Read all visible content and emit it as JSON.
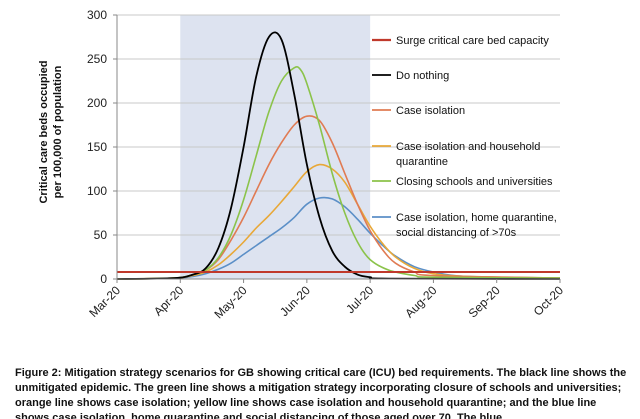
{
  "chart_data": {
    "type": "line",
    "title": "",
    "ylabel_lines": [
      "Critical care beds occupied",
      "per 100,000 of population"
    ],
    "xlabel": "",
    "ylim": [
      0,
      300
    ],
    "yticks": [
      0,
      50,
      100,
      150,
      200,
      250,
      300
    ],
    "xtick_labels": [
      "Mar-20",
      "Apr-20",
      "May-20",
      "Jun-20",
      "Jul-20",
      "Aug-20",
      "Sep-20",
      "Oct-20"
    ],
    "x_domain_months": [
      0,
      7
    ],
    "shaded_period_months": [
      1,
      4
    ],
    "surge_capacity": 8,
    "series": [
      {
        "name": "Surge critical care bed capacity",
        "color": "#c0392b",
        "kind": "hline",
        "value": 8
      },
      {
        "name": "Do nothing",
        "color": "#000000",
        "x": [
          0,
          0.9,
          1.2,
          1.4,
          1.6,
          1.8,
          2.0,
          2.2,
          2.4,
          2.6,
          2.8,
          3.0,
          3.2,
          3.4,
          3.6,
          3.8,
          4.0,
          4.3,
          7
        ],
        "y": [
          0,
          1,
          5,
          12,
          35,
          80,
          150,
          230,
          275,
          272,
          210,
          130,
          70,
          32,
          14,
          5,
          2,
          0.5,
          0
        ]
      },
      {
        "name": "Case isolation",
        "color": "#e07b53",
        "x": [
          0,
          0.9,
          1.2,
          1.4,
          1.6,
          1.8,
          2.0,
          2.2,
          2.4,
          2.6,
          2.8,
          3.0,
          3.2,
          3.4,
          3.6,
          3.8,
          4.0,
          4.2,
          4.4,
          4.7,
          5.0,
          7
        ],
        "y": [
          0,
          1,
          5,
          10,
          22,
          44,
          70,
          100,
          130,
          155,
          175,
          185,
          180,
          155,
          120,
          85,
          55,
          33,
          18,
          8,
          4,
          1
        ]
      },
      {
        "name": "Case isolation and household quarantine",
        "color": "#e8a838",
        "x": [
          0,
          0.9,
          1.2,
          1.4,
          1.6,
          1.8,
          2.0,
          2.2,
          2.4,
          2.6,
          2.8,
          3.0,
          3.2,
          3.4,
          3.6,
          3.8,
          4.0,
          4.2,
          4.4,
          4.7,
          5.0,
          5.5,
          7
        ],
        "y": [
          0,
          1,
          4,
          8,
          16,
          28,
          42,
          58,
          72,
          88,
          105,
          122,
          130,
          125,
          110,
          85,
          60,
          40,
          25,
          12,
          6,
          3,
          1
        ]
      },
      {
        "name": "Closing schools and universities",
        "color": "#8bc34a",
        "x": [
          0,
          0.9,
          1.2,
          1.4,
          1.6,
          1.8,
          2.0,
          2.2,
          2.4,
          2.6,
          2.8,
          2.9,
          3.0,
          3.2,
          3.4,
          3.6,
          3.8,
          4.0,
          4.3,
          4.7,
          5.0,
          7
        ],
        "y": [
          0,
          1,
          5,
          10,
          24,
          50,
          90,
          140,
          190,
          225,
          240,
          238,
          222,
          175,
          120,
          75,
          42,
          22,
          10,
          4,
          2,
          1
        ]
      },
      {
        "name": "Case isolation, home quarantine, social distancing of >70s",
        "color": "#5b8fc7",
        "x": [
          0,
          0.9,
          1.2,
          1.4,
          1.6,
          1.8,
          2.0,
          2.2,
          2.4,
          2.6,
          2.8,
          3.0,
          3.2,
          3.4,
          3.6,
          3.8,
          4.0,
          4.2,
          4.4,
          4.7,
          5.0,
          5.5,
          7
        ],
        "y": [
          0,
          1,
          3,
          6,
          11,
          18,
          28,
          38,
          48,
          58,
          70,
          85,
          92,
          91,
          82,
          68,
          52,
          38,
          26,
          14,
          8,
          3,
          1
        ]
      }
    ],
    "legend_labels": [
      [
        "Surge critical care bed capacity"
      ],
      [
        "Do nothing"
      ],
      [
        "Case isolation"
      ],
      [
        "Case isolation and household",
        "quarantine"
      ],
      [
        "Closing schools and universities"
      ],
      [
        "Case isolation, home quarantine,",
        "social distancing of >70s"
      ]
    ]
  },
  "caption": {
    "text": "Figure 2: Mitigation strategy scenarios for GB showing critical care (ICU) bed requirements. The black line shows the unmitigated epidemic. The green line shows a mitigation strategy incorporating closure of schools and universities; orange line shows case isolation; yellow line shows case isolation and household quarantine; and the blue line shows case isolation, home quarantine and social distancing of those aged over 70. The blue"
  }
}
